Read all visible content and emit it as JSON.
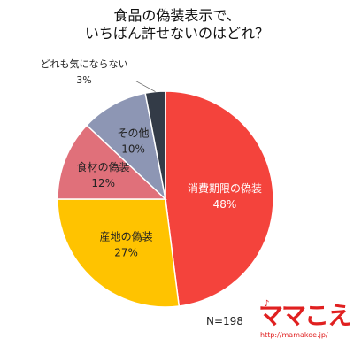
{
  "title": {
    "line1": "食品の偽装表示で、",
    "line2": "いちばん許せないのはどれ？"
  },
  "chart_data": {
    "type": "pie",
    "title": "食品の偽装表示で、いちばん許せないのはどれ？",
    "slices": [
      {
        "label": "消費期限の偽装",
        "value": 48,
        "display": "48%",
        "color": "#f4433c"
      },
      {
        "label": "産地の偽装",
        "value": 27,
        "display": "27%",
        "color": "#ffc300"
      },
      {
        "label": "食材の偽装",
        "value": 12,
        "display": "12%",
        "color": "#e0707a"
      },
      {
        "label": "その他",
        "value": 10,
        "display": "10%",
        "color": "#8d96b4"
      },
      {
        "label": "どれも気にならない",
        "value": 3,
        "display": "3%",
        "color": "#333b47"
      }
    ],
    "start": "top",
    "direction": "clockwise",
    "legend": "none"
  },
  "footer": {
    "n_label": "N=198"
  },
  "logo": {
    "text": "ママこえ",
    "url": "http://mamakoe.jp/",
    "deco": "♪"
  }
}
